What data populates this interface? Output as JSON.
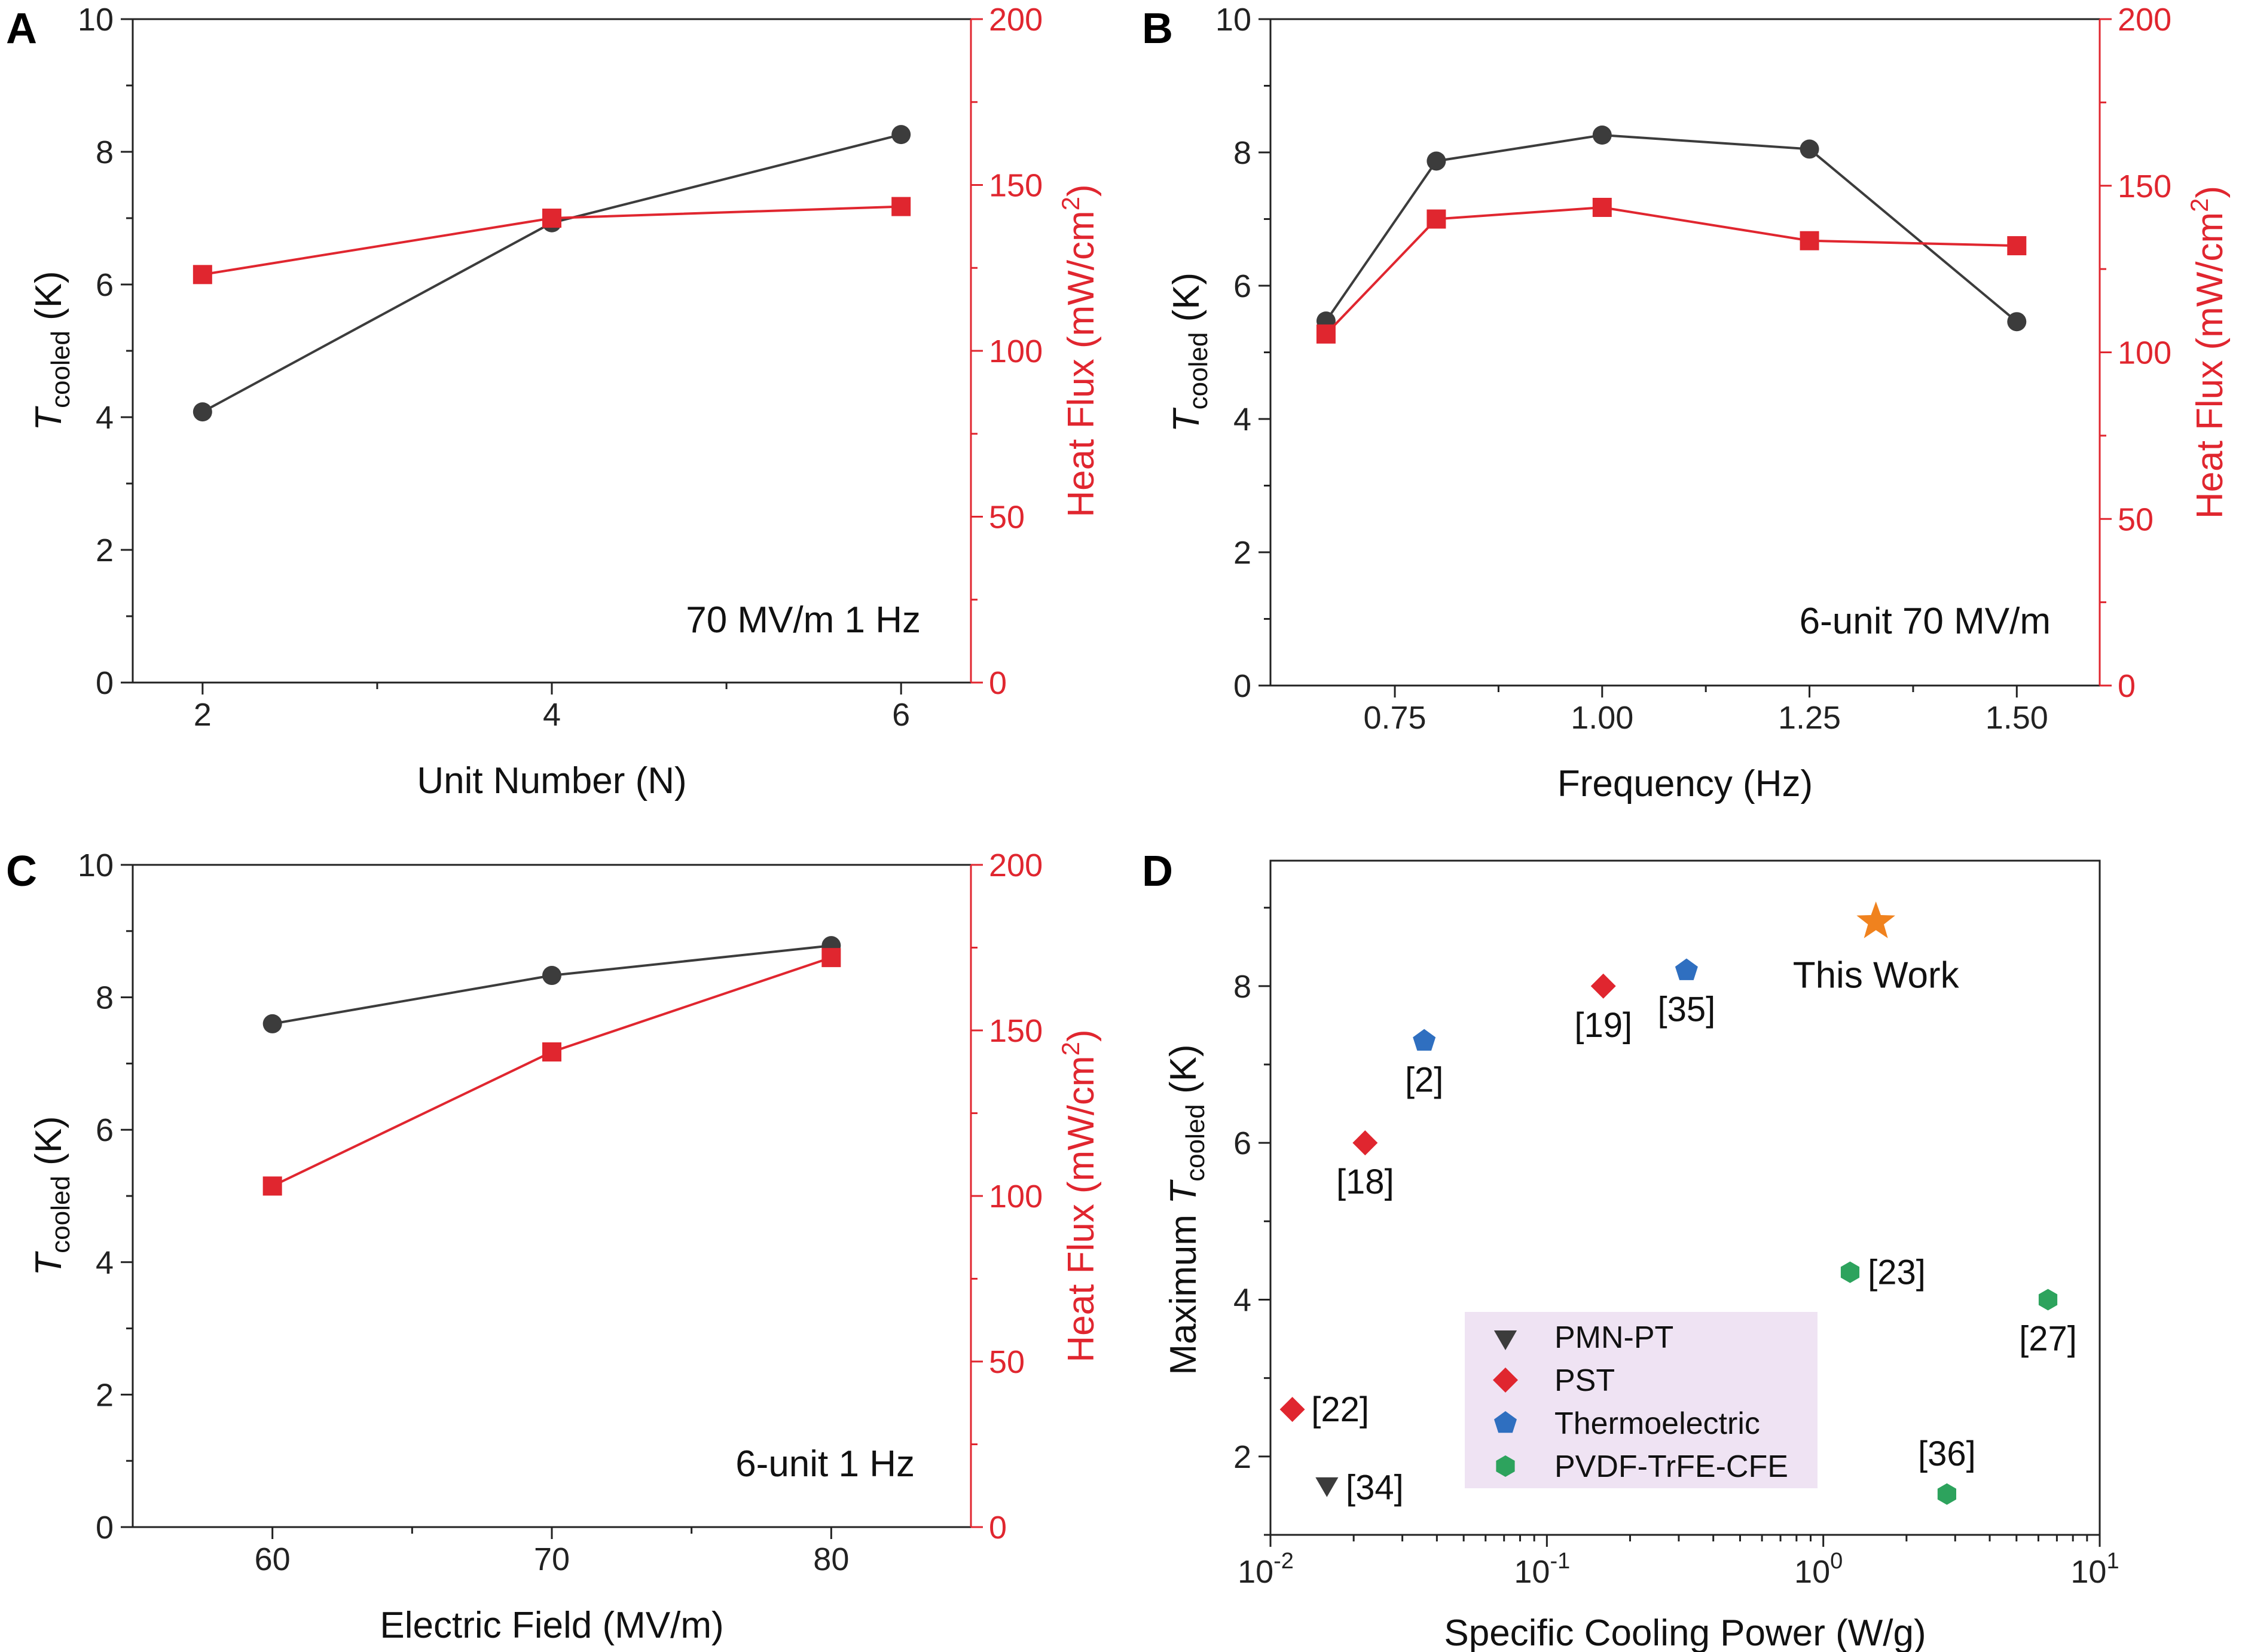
{
  "colors": {
    "tcooled": "#3c3c3c",
    "heatflux": "#e0262f",
    "pmnpt": "#3c3c3c",
    "pst": "#e0262f",
    "thermoelectric": "#2f6fc0",
    "pvdf": "#2da35d",
    "this_work": "#f0821e",
    "legend_bg": "#efe3f3"
  },
  "chart_data": [
    {
      "panel": "A",
      "type": "line",
      "annotation": "70 MV/m 1 Hz",
      "xlabel": "Unit Number (N)",
      "ylabel_left": "T_cooled (K)",
      "ylabel_right": "Heat Flux (mW/cm²)",
      "xlim": [
        1.6,
        6.4
      ],
      "ylim_left": [
        0,
        10
      ],
      "ylim_right": [
        0,
        200
      ],
      "xticks": [
        2,
        4,
        6
      ],
      "xtick_labels": [
        "2",
        "4",
        "6"
      ],
      "yticks_left": [
        0,
        2,
        4,
        6,
        8,
        10
      ],
      "yticks_right": [
        0,
        50,
        100,
        150,
        200
      ],
      "series": [
        {
          "x": [
            2,
            4,
            6
          ],
          "values": [
            4.08,
            6.93,
            8.26
          ],
          "axis": "left",
          "marker": "circle"
        },
        {
          "x": [
            2,
            4,
            6
          ],
          "values": [
            123,
            140,
            143.5
          ],
          "axis": "right",
          "marker": "square"
        }
      ]
    },
    {
      "panel": "B",
      "type": "line",
      "annotation": "6-unit 70 MV/m",
      "xlabel": "Frequency (Hz)",
      "ylabel_left": "T_cooled (K)",
      "ylabel_right": "Heat Flux (mW/cm²)",
      "xlim": [
        0.6,
        1.6
      ],
      "ylim_left": [
        0,
        10
      ],
      "ylim_right": [
        0,
        200
      ],
      "xticks": [
        0.75,
        1.0,
        1.25,
        1.5
      ],
      "xtick_labels": [
        "0.75",
        "1.00",
        "1.25",
        "1.50"
      ],
      "yticks_left": [
        0,
        2,
        4,
        6,
        8,
        10
      ],
      "yticks_right": [
        0,
        50,
        100,
        150,
        200
      ],
      "series": [
        {
          "x": [
            0.667,
            0.8,
            1.0,
            1.25,
            1.5
          ],
          "values": [
            5.47,
            7.87,
            8.26,
            8.05,
            5.46
          ],
          "axis": "left",
          "marker": "circle"
        },
        {
          "x": [
            0.667,
            0.8,
            1.0,
            1.25,
            1.5
          ],
          "values": [
            105.5,
            140,
            143.5,
            133.5,
            132
          ],
          "axis": "right",
          "marker": "square"
        }
      ]
    },
    {
      "panel": "C",
      "type": "line",
      "annotation": "6-unit 1 Hz",
      "xlabel": "Electric Field (MV/m)",
      "ylabel_left": "T_cooled (K)",
      "ylabel_right": "Heat Flux (mW/cm²)",
      "xlim": [
        55,
        85
      ],
      "ylim_left": [
        0,
        10
      ],
      "ylim_right": [
        0,
        200
      ],
      "xticks": [
        60,
        70,
        80
      ],
      "xtick_labels": [
        "60",
        "70",
        "80"
      ],
      "yticks_left": [
        0,
        2,
        4,
        6,
        8,
        10
      ],
      "yticks_right": [
        0,
        50,
        100,
        150,
        200
      ],
      "series": [
        {
          "x": [
            60,
            70,
            80
          ],
          "values": [
            7.6,
            8.33,
            8.78
          ],
          "axis": "left",
          "marker": "circle"
        },
        {
          "x": [
            60,
            70,
            80
          ],
          "values": [
            103,
            143.5,
            172
          ],
          "axis": "right",
          "marker": "square"
        }
      ]
    },
    {
      "panel": "D",
      "type": "scatter",
      "xlabel": "Specific Cooling Power (W/g)",
      "ylabel": "Maximum T_cooled (K)",
      "xscale": "log",
      "xlim": [
        0.01,
        10
      ],
      "ylim": [
        1,
        9.6
      ],
      "xticks": [
        0.01,
        0.1,
        1,
        10
      ],
      "yticks": [
        2,
        4,
        6,
        8
      ],
      "legend_position": "lower-center",
      "legend": [
        {
          "name": "PMN-PT",
          "marker": "triangle-down"
        },
        {
          "name": "PST",
          "marker": "diamond"
        },
        {
          "name": "Thermoelectric",
          "marker": "pentagon"
        },
        {
          "name": "PVDF-TrFE-CFE",
          "marker": "hexagon"
        }
      ],
      "points": [
        {
          "group": "PMN-PT",
          "x": 0.016,
          "y": 1.65,
          "label": "[34]"
        },
        {
          "group": "PST",
          "x": 0.012,
          "y": 2.6,
          "label": "[22]"
        },
        {
          "group": "PST",
          "x": 0.022,
          "y": 6.0,
          "label": "[18]"
        },
        {
          "group": "PST",
          "x": 0.16,
          "y": 8.0,
          "label": "[19]"
        },
        {
          "group": "Thermoelectric",
          "x": 0.036,
          "y": 7.3,
          "label": "[2]"
        },
        {
          "group": "Thermoelectric",
          "x": 0.32,
          "y": 8.2,
          "label": "[35]"
        },
        {
          "group": "PVDF-TrFE-CFE",
          "x": 1.25,
          "y": 4.35,
          "label": "[23]"
        },
        {
          "group": "PVDF-TrFE-CFE",
          "x": 6.5,
          "y": 4.0,
          "label": "[27]"
        },
        {
          "group": "PVDF-TrFE-CFE",
          "x": 2.8,
          "y": 1.52,
          "label": "[36]"
        },
        {
          "group": "This Work",
          "x": 1.55,
          "y": 8.82,
          "label": "This Work"
        }
      ]
    }
  ]
}
